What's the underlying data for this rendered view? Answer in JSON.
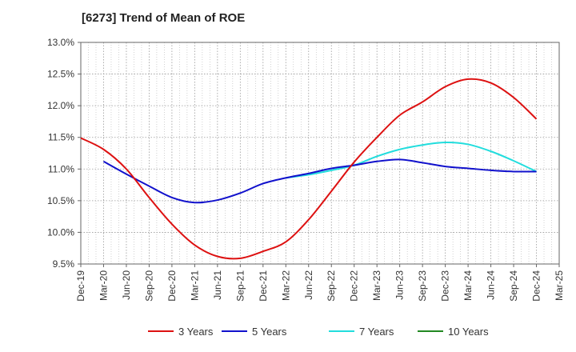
{
  "chart_data": {
    "type": "line",
    "title": "[6273]  Trend of Mean of ROE",
    "xlabel": "",
    "ylabel": "",
    "x_ticks": [
      "Dec-19",
      "Mar-20",
      "Jun-20",
      "Sep-20",
      "Dec-20",
      "Mar-21",
      "Jun-21",
      "Sep-21",
      "Dec-21",
      "Mar-22",
      "Jun-22",
      "Sep-22",
      "Dec-22",
      "Mar-23",
      "Jun-23",
      "Sep-23",
      "Dec-23",
      "Mar-24",
      "Jun-24",
      "Sep-24",
      "Dec-24",
      "Mar-25"
    ],
    "y_ticks": [
      "9.5%",
      "10.0%",
      "10.5%",
      "11.0%",
      "11.5%",
      "12.0%",
      "12.5%",
      "13.0%"
    ],
    "ylim": [
      9.5,
      13.0
    ],
    "grid": true,
    "legend_position": "bottom",
    "series": [
      {
        "name": "3 Years",
        "color": "#dd1111",
        "points": [
          [
            "Dec-19",
            11.49
          ],
          [
            "Mar-20",
            11.31
          ],
          [
            "Jun-20",
            11.0
          ],
          [
            "Sep-20",
            10.55
          ],
          [
            "Dec-20",
            10.13
          ],
          [
            "Mar-21",
            9.8
          ],
          [
            "Jun-21",
            9.62
          ],
          [
            "Sep-21",
            9.59
          ],
          [
            "Dec-21",
            9.7
          ],
          [
            "Mar-22",
            9.85
          ],
          [
            "Jun-22",
            10.2
          ],
          [
            "Sep-22",
            10.65
          ],
          [
            "Dec-22",
            11.11
          ],
          [
            "Mar-23",
            11.5
          ],
          [
            "Jun-23",
            11.85
          ],
          [
            "Sep-23",
            12.06
          ],
          [
            "Dec-23",
            12.3
          ],
          [
            "Mar-24",
            12.42
          ],
          [
            "Jun-24",
            12.36
          ],
          [
            "Sep-24",
            12.13
          ],
          [
            "Dec-24",
            11.79
          ]
        ]
      },
      {
        "name": "5 Years",
        "color": "#1111cc",
        "points": [
          [
            "Mar-20",
            11.12
          ],
          [
            "Jun-20",
            10.92
          ],
          [
            "Sep-20",
            10.73
          ],
          [
            "Dec-20",
            10.55
          ],
          [
            "Mar-21",
            10.47
          ],
          [
            "Jun-21",
            10.51
          ],
          [
            "Sep-21",
            10.62
          ],
          [
            "Dec-21",
            10.77
          ],
          [
            "Mar-22",
            10.86
          ],
          [
            "Jun-22",
            10.93
          ],
          [
            "Sep-22",
            11.01
          ],
          [
            "Dec-22",
            11.06
          ],
          [
            "Mar-23",
            11.12
          ],
          [
            "Jun-23",
            11.15
          ],
          [
            "Sep-23",
            11.1
          ],
          [
            "Dec-23",
            11.04
          ],
          [
            "Mar-24",
            11.01
          ],
          [
            "Jun-24",
            10.98
          ],
          [
            "Sep-24",
            10.96
          ],
          [
            "Dec-24",
            10.96
          ]
        ]
      },
      {
        "name": "7 Years",
        "color": "#22dddd",
        "points": [
          [
            "Mar-22",
            10.86
          ],
          [
            "Jun-22",
            10.91
          ],
          [
            "Sep-22",
            10.98
          ],
          [
            "Dec-22",
            11.06
          ],
          [
            "Mar-23",
            11.2
          ],
          [
            "Jun-23",
            11.31
          ],
          [
            "Sep-23",
            11.38
          ],
          [
            "Dec-23",
            11.42
          ],
          [
            "Mar-24",
            11.39
          ],
          [
            "Jun-24",
            11.28
          ],
          [
            "Sep-24",
            11.13
          ],
          [
            "Dec-24",
            10.96
          ]
        ]
      },
      {
        "name": "10 Years",
        "color": "#228822",
        "points": []
      }
    ]
  }
}
